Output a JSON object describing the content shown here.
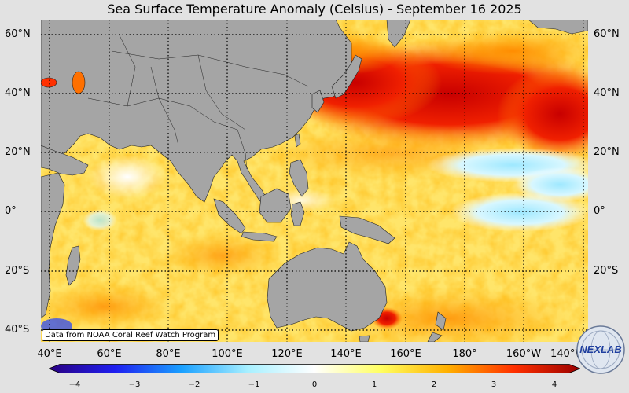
{
  "title": "Sea Surface Temperature Anomaly (Celsius) - September 16 2025",
  "credit": "Data from NOAA Coral Reef Watch Program",
  "latitude_labels": [
    "60°N",
    "40°N",
    "20°N",
    "0°",
    "20°S",
    "40°S"
  ],
  "longitude_labels": [
    "40°E",
    "60°E",
    "80°E",
    "100°E",
    "120°E",
    "140°E",
    "160°E",
    "180°",
    "160°W",
    "140°W"
  ],
  "colorbar": {
    "ticks": [
      "−4",
      "−3",
      "−2",
      "−1",
      "0",
      "1",
      "2",
      "3",
      "4"
    ],
    "range": [
      -4,
      4
    ],
    "colors": [
      "#2a0080",
      "#1f1ff0",
      "#1aa0ff",
      "#a8f0ff",
      "#ffffff",
      "#ffff60",
      "#ffb000",
      "#ff3000",
      "#9a0000"
    ]
  },
  "colors": {
    "land": "#a5a5a5",
    "background": "#e2e2e2",
    "warm_core": "#e80000",
    "neutral_warm": "#ffe870",
    "cool": "#c9f4ff"
  },
  "logo": {
    "text": "NEXLAB",
    "icon": "nexlab-globe-logo"
  }
}
